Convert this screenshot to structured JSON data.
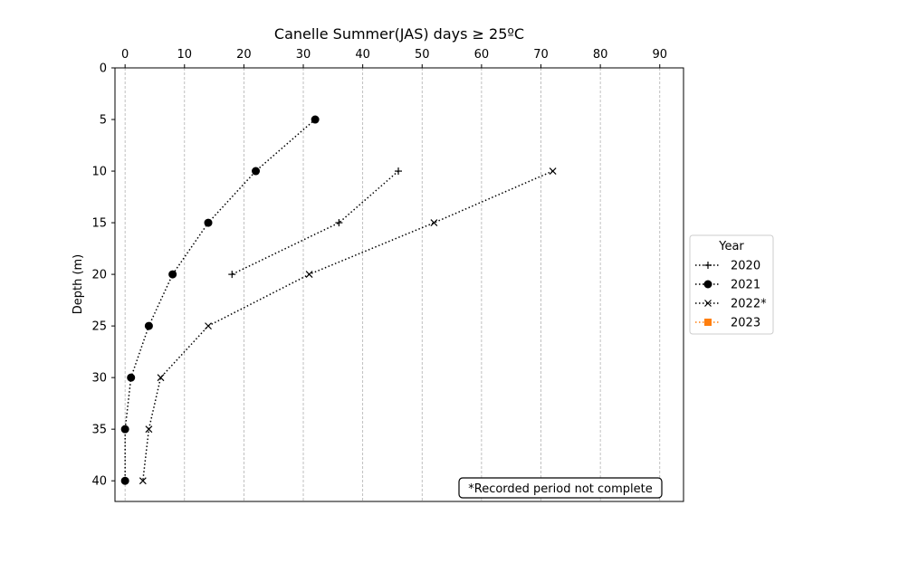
{
  "chart_data": {
    "type": "line",
    "title": "Canelle Summer(JAS) days ≥ 25ºC",
    "xlabel": "",
    "ylabel": "Depth (m)",
    "xlim": [
      -1.7,
      94
    ],
    "ylim": [
      42,
      0
    ],
    "y_inverted": true,
    "x_axis_position": "top",
    "xticks": [
      0,
      10,
      20,
      30,
      40,
      50,
      60,
      70,
      80,
      90
    ],
    "yticks": [
      0,
      5,
      10,
      15,
      20,
      25,
      30,
      35,
      40
    ],
    "grid": "vertical-dashed",
    "legend_title": "Year",
    "legend_position": "right-center-outside",
    "annotation": "*Recorded period not complete",
    "annotation_position": "bottom-right",
    "series": [
      {
        "name": "2020",
        "marker": "plus",
        "linestyle": "dotted",
        "color": "#000000",
        "points": [
          {
            "x": 46,
            "y": 10
          },
          {
            "x": 36,
            "y": 15
          },
          {
            "x": 18,
            "y": 20
          }
        ]
      },
      {
        "name": "2021",
        "marker": "circle",
        "linestyle": "dotted",
        "color": "#000000",
        "points": [
          {
            "x": 32,
            "y": 5
          },
          {
            "x": 22,
            "y": 10
          },
          {
            "x": 14,
            "y": 15
          },
          {
            "x": 8,
            "y": 20
          },
          {
            "x": 4,
            "y": 25
          },
          {
            "x": 1,
            "y": 30
          },
          {
            "x": 0,
            "y": 35
          },
          {
            "x": 0,
            "y": 40
          }
        ]
      },
      {
        "name": "2022*",
        "marker": "x",
        "linestyle": "dotted",
        "color": "#000000",
        "points": [
          {
            "x": 72,
            "y": 10
          },
          {
            "x": 52,
            "y": 15
          },
          {
            "x": 31,
            "y": 20
          },
          {
            "x": 14,
            "y": 25
          },
          {
            "x": 6,
            "y": 30
          },
          {
            "x": 4,
            "y": 35
          },
          {
            "x": 3,
            "y": 40
          }
        ]
      },
      {
        "name": "2023",
        "marker": "square",
        "linestyle": "dotted",
        "color": "#ff7f0e",
        "points": []
      }
    ]
  }
}
